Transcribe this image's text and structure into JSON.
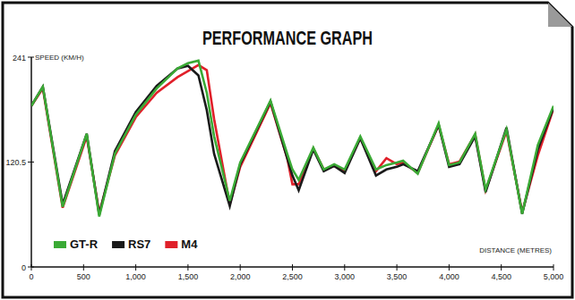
{
  "chart_data": {
    "type": "line",
    "title": "PERFORMANCE GRAPH",
    "x_label": "DISTANCE (METRES)",
    "y_label": "SPEED (KM/H)",
    "x": [
      0,
      110,
      300,
      530,
      650,
      800,
      1000,
      1200,
      1400,
      1500,
      1600,
      1680,
      1750,
      1900,
      2000,
      2290,
      2450,
      2500,
      2560,
      2700,
      2800,
      2900,
      3000,
      3150,
      3300,
      3400,
      3500,
      3560,
      3700,
      3900,
      4000,
      4100,
      4250,
      4350,
      4550,
      4700,
      4850,
      5000
    ],
    "series": [
      {
        "name": "GT-R",
        "color": "#3aaa35",
        "values": [
          185,
          207,
          69,
          153,
          58,
          130,
          175,
          205,
          228,
          234,
          237,
          200,
          150,
          76,
          120,
          191,
          130,
          112,
          100,
          137,
          112,
          118,
          112,
          150,
          112,
          117,
          120,
          122,
          107,
          165,
          117,
          120,
          153,
          89,
          158,
          61,
          140,
          185
        ]
      },
      {
        "name": "RS7",
        "color": "#1a1a1a",
        "values": [
          185,
          207,
          72,
          153,
          60,
          133,
          178,
          208,
          228,
          231,
          220,
          180,
          130,
          70,
          118,
          190,
          125,
          105,
          88,
          135,
          110,
          116,
          108,
          148,
          105,
          112,
          115,
          118,
          110,
          163,
          115,
          118,
          150,
          86,
          160,
          61,
          135,
          183
        ]
      },
      {
        "name": "M4",
        "color": "#e0202a",
        "values": [
          185,
          205,
          68,
          150,
          62,
          128,
          172,
          200,
          218,
          225,
          232,
          226,
          170,
          72,
          115,
          188,
          125,
          95,
          95,
          136,
          112,
          116,
          110,
          148,
          110,
          125,
          118,
          120,
          108,
          163,
          118,
          121,
          152,
          88,
          156,
          63,
          128,
          182
        ]
      }
    ],
    "xlim": [
      0,
      5000
    ],
    "xticks": [
      0,
      500,
      {
        "value": 1000,
        "label": "1,000"
      },
      {
        "value": 1500,
        "label": "1,500"
      },
      {
        "value": 2000,
        "label": "2,000"
      },
      {
        "value": 2500,
        "label": "2,500"
      },
      {
        "value": 3000,
        "label": "3,000"
      },
      {
        "value": 3500,
        "label": "3,500"
      },
      {
        "value": 4000,
        "label": "4,000"
      },
      {
        "value": 4500,
        "label": "4,500"
      },
      {
        "value": 5000,
        "label": "5,000"
      }
    ],
    "ylim": [
      0,
      241
    ],
    "yticks": [
      0,
      120.5,
      241
    ],
    "grid": false,
    "legend": "lower left"
  }
}
